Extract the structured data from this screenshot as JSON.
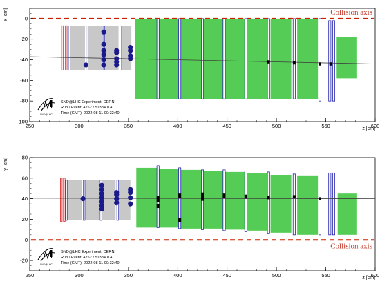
{
  "colors": {
    "frame": "#000000",
    "collision_axis": "#cc2200",
    "track": "#404040",
    "veto": "#dd3333",
    "target_wall": "#c8c8c8",
    "target_outline": "#3333aa",
    "scifi_hit": "#1a1a8c",
    "muon_wall": "#55cc55",
    "muon_bar": "#2222aa",
    "muon_hit": "#000000"
  },
  "info": {
    "experiment": "SND@LHC Experiment, CERN",
    "run_event": "Run / Event: 4752 / 51384014",
    "time": "Time (GMT): 2022-08-11 00:32:40"
  },
  "logo": {
    "text": "SND@LHC"
  },
  "chart_data": [
    {
      "type": "scatter",
      "panel": "top",
      "xlabel": "z [cm]",
      "ylabel": "x [cm]",
      "xlim": [
        250,
        600
      ],
      "ylim": [
        -100,
        10
      ],
      "x_ticks": [
        250,
        300,
        350,
        400,
        450,
        500,
        550,
        600
      ],
      "y_ticks": [
        -100,
        -80,
        -60,
        -40,
        -20,
        0
      ],
      "collision_axis": {
        "label": "Collision axis",
        "value": 0
      },
      "track": {
        "z": [
          250,
          600
        ],
        "v": [
          -37,
          -44
        ]
      },
      "veto_bars": [
        {
          "z": 283,
          "v0": -50,
          "v1": -7
        },
        {
          "z": 287,
          "v0": -50,
          "v1": -7
        }
      ],
      "target_walls": [
        {
          "z0": 291,
          "z1": 306,
          "v0": -50,
          "v1": -7
        },
        {
          "z0": 309,
          "z1": 323,
          "v0": -50,
          "v1": -7
        },
        {
          "z0": 326,
          "z1": 340,
          "v0": -50,
          "v1": -7
        },
        {
          "z0": 343,
          "z1": 353,
          "v0": -50,
          "v1": -7
        }
      ],
      "scifi_hits": [
        {
          "z": 307,
          "v": -45
        },
        {
          "z": 325,
          "v": -13
        },
        {
          "z": 325,
          "v": -25
        },
        {
          "z": 325,
          "v": -31
        },
        {
          "z": 325,
          "v": -35
        },
        {
          "z": 325,
          "v": -40
        },
        {
          "z": 325,
          "v": -45
        },
        {
          "z": 338,
          "v": -31
        },
        {
          "z": 338,
          "v": -33
        },
        {
          "z": 338,
          "v": -39
        },
        {
          "z": 338,
          "v": -42
        },
        {
          "z": 338,
          "v": -45
        },
        {
          "z": 352,
          "v": -28
        },
        {
          "z": 352,
          "v": -31
        },
        {
          "z": 352,
          "v": -36
        },
        {
          "z": 352,
          "v": -39
        }
      ],
      "muon_walls": [
        {
          "z0": 357,
          "z1": 379,
          "v0": -78,
          "v1": 0
        },
        {
          "z0": 381,
          "z1": 401,
          "v0": -78,
          "v1": 0
        },
        {
          "z0": 403,
          "z1": 424,
          "v0": -78,
          "v1": 0
        },
        {
          "z0": 426,
          "z1": 446,
          "v0": -78,
          "v1": 0
        },
        {
          "z0": 448,
          "z1": 468,
          "v0": -78,
          "v1": 0
        },
        {
          "z0": 470,
          "z1": 491,
          "v0": -78,
          "v1": 0
        },
        {
          "z0": 494,
          "z1": 515,
          "v0": -78,
          "v1": 0
        },
        {
          "z0": 521,
          "z1": 542,
          "v0": -78,
          "v1": 0
        },
        {
          "z0": 561,
          "z1": 581,
          "v0": -58,
          "v1": -18
        }
      ],
      "muon_bars": [
        {
          "z": 380,
          "v0": -78,
          "v1": 0
        },
        {
          "z": 402,
          "v0": -78,
          "v1": 0
        },
        {
          "z": 425,
          "v0": -78,
          "v1": 0
        },
        {
          "z": 447,
          "v0": -78,
          "v1": 0
        },
        {
          "z": 469,
          "v0": -78,
          "v1": 0
        },
        {
          "z": 492,
          "v0": -78,
          "v1": 0
        },
        {
          "z": 518,
          "v0": -78,
          "v1": 0
        },
        {
          "z": 544,
          "v0": -80,
          "v1": 0
        },
        {
          "z": 554,
          "v0": -80,
          "v1": -2
        },
        {
          "z": 558,
          "v0": -80,
          "v1": -2
        }
      ],
      "muon_hits": [
        {
          "z": 492,
          "v": -42,
          "h": 3
        },
        {
          "z": 518,
          "v": -43,
          "h": 3
        },
        {
          "z": 544,
          "v": -44,
          "h": 3
        },
        {
          "z": 555,
          "v": -44,
          "h": 3
        }
      ]
    },
    {
      "type": "scatter",
      "panel": "bottom",
      "xlabel": "z [cm]",
      "ylabel": "y [cm]",
      "xlim": [
        250,
        600
      ],
      "ylim": [
        -30,
        80
      ],
      "x_ticks": [
        250,
        300,
        350,
        400,
        450,
        500,
        550,
        600
      ],
      "y_ticks": [
        -20,
        0,
        20,
        40,
        60,
        80
      ],
      "collision_axis": {
        "label": "Collision axis",
        "value": 0
      },
      "track": {
        "z": [
          250,
          600
        ],
        "v": [
          40.5,
          40
        ]
      },
      "veto_bars": [
        {
          "z": 282,
          "v0": 18,
          "v1": 60
        },
        {
          "z": 285,
          "v0": 18,
          "v1": 60
        }
      ],
      "target_walls": [
        {
          "z0": 288,
          "z1": 303,
          "v0": 19,
          "v1": 58
        },
        {
          "z0": 306,
          "z1": 320,
          "v0": 19,
          "v1": 58
        },
        {
          "z0": 323,
          "z1": 337,
          "v0": 19,
          "v1": 58
        },
        {
          "z0": 340,
          "z1": 352,
          "v0": 19,
          "v1": 58
        }
      ],
      "scifi_hits": [
        {
          "z": 304,
          "v": 40
        },
        {
          "z": 323,
          "v": 30
        },
        {
          "z": 323,
          "v": 33
        },
        {
          "z": 323,
          "v": 37
        },
        {
          "z": 323,
          "v": 41
        },
        {
          "z": 323,
          "v": 45
        },
        {
          "z": 323,
          "v": 49
        },
        {
          "z": 323,
          "v": 53
        },
        {
          "z": 338,
          "v": 36
        },
        {
          "z": 338,
          "v": 40
        },
        {
          "z": 338,
          "v": 44
        },
        {
          "z": 338,
          "v": 46
        },
        {
          "z": 352,
          "v": 35
        },
        {
          "z": 352,
          "v": 41
        },
        {
          "z": 352,
          "v": 46
        },
        {
          "z": 352,
          "v": 49
        }
      ],
      "muon_walls": [
        {
          "z0": 358,
          "z1": 379,
          "v0": 12,
          "v1": 70
        },
        {
          "z0": 381,
          "z1": 401,
          "v0": 12,
          "v1": 69
        },
        {
          "z0": 403,
          "z1": 424,
          "v0": 11,
          "v1": 68
        },
        {
          "z0": 426,
          "z1": 446,
          "v0": 11,
          "v1": 67
        },
        {
          "z0": 448,
          "z1": 468,
          "v0": 10,
          "v1": 66
        },
        {
          "z0": 470,
          "z1": 491,
          "v0": 9,
          "v1": 65
        },
        {
          "z0": 494,
          "z1": 515,
          "v0": 7,
          "v1": 63
        },
        {
          "z0": 521,
          "z1": 542,
          "v0": 5,
          "v1": 62
        },
        {
          "z0": 562,
          "z1": 581,
          "v0": 5,
          "v1": 45
        }
      ],
      "muon_bars": [
        {
          "z": 380,
          "v0": 12,
          "v1": 72
        },
        {
          "z": 402,
          "v0": 11,
          "v1": 70
        },
        {
          "z": 425,
          "v0": 10,
          "v1": 68
        },
        {
          "z": 447,
          "v0": 9,
          "v1": 68
        },
        {
          "z": 469,
          "v0": 8,
          "v1": 67
        },
        {
          "z": 492,
          "v0": 6,
          "v1": 66
        },
        {
          "z": 518,
          "v0": 5,
          "v1": 64
        },
        {
          "z": 544,
          "v0": 5,
          "v1": 65
        },
        {
          "z": 554,
          "v0": 5,
          "v1": 65
        },
        {
          "z": 558,
          "v0": 5,
          "v1": 65
        }
      ],
      "muon_hits": [
        {
          "z": 380,
          "v": 40,
          "h": 6
        },
        {
          "z": 380,
          "v": 33,
          "h": 4
        },
        {
          "z": 402,
          "v": 43,
          "h": 4
        },
        {
          "z": 402,
          "v": 19,
          "h": 4
        },
        {
          "z": 425,
          "v": 42,
          "h": 8
        },
        {
          "z": 447,
          "v": 43,
          "h": 4
        },
        {
          "z": 469,
          "v": 42,
          "h": 4
        },
        {
          "z": 492,
          "v": 41,
          "h": 3
        },
        {
          "z": 518,
          "v": 42,
          "h": 3
        },
        {
          "z": 544,
          "v": 40,
          "h": 3
        }
      ]
    }
  ]
}
